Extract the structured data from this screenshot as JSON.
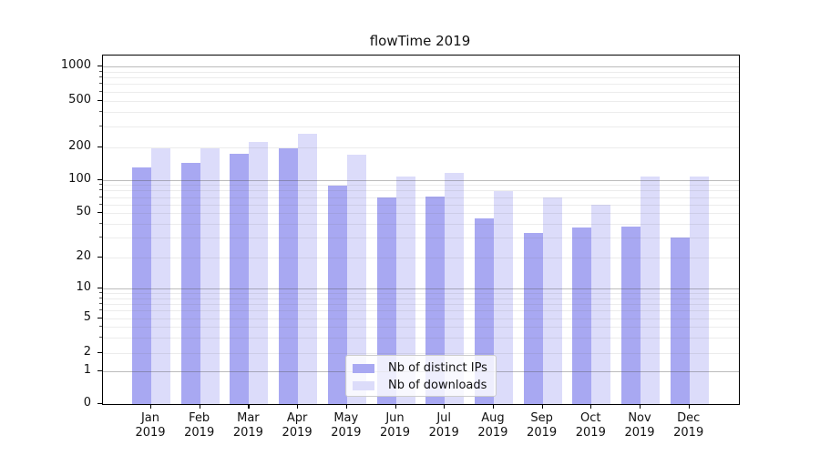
{
  "chart_data": {
    "type": "bar",
    "title": "flowTime 2019",
    "categories": [
      "Jan 2019",
      "Feb 2019",
      "Mar 2019",
      "Apr 2019",
      "May 2019",
      "Jun 2019",
      "Jul 2019",
      "Aug 2019",
      "Sep 2019",
      "Oct 2019",
      "Nov 2019",
      "Dec 2019"
    ],
    "series": [
      {
        "name": "Nb of distinct IPs",
        "color": "#a8a8f2",
        "values": [
          130,
          143,
          173,
          197,
          89,
          69,
          71,
          45,
          33,
          37,
          38,
          30
        ]
      },
      {
        "name": "Nb of downloads",
        "color": "#dcdcfa",
        "values": [
          196,
          196,
          221,
          260,
          170,
          108,
          117,
          79,
          70,
          60,
          107,
          108
        ]
      }
    ],
    "yscale": "symlog",
    "ytick_labels": [
      "0",
      "1",
      "2",
      "5",
      "10",
      "20",
      "50",
      "100",
      "200",
      "500",
      "1000"
    ],
    "ytick_values": [
      0,
      1,
      2,
      5,
      10,
      20,
      50,
      100,
      200,
      500,
      1000
    ],
    "ylim": [
      0,
      1220
    ],
    "grid": true,
    "legend_position": "lower center",
    "grid_major_values": [
      1,
      10,
      100,
      1000
    ],
    "grid_minor_values": [
      2,
      3,
      4,
      5,
      6,
      7,
      8,
      9,
      20,
      30,
      40,
      50,
      60,
      70,
      80,
      90,
      200,
      300,
      400,
      500,
      600,
      700,
      800,
      900
    ]
  }
}
